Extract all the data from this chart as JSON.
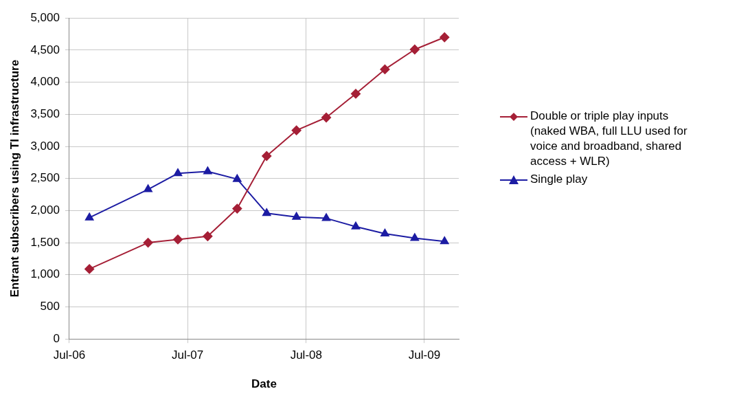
{
  "chart_data": {
    "type": "line",
    "xlabel": "Date",
    "ylabel": "Entrant subscribers using TI infrastructure",
    "x": [
      "2006-09",
      "2007-03",
      "2007-06",
      "2007-09",
      "2007-12",
      "2008-03",
      "2008-06",
      "2008-09",
      "2008-12",
      "2009-03",
      "2009-06",
      "2009-09"
    ],
    "series": [
      {
        "name": "Double or triple play inputs (naked WBA, full LLU used for voice and broadband, shared access + WLR)",
        "color": "#a51f36",
        "marker": "diamond",
        "values": [
          1090,
          1500,
          1550,
          1600,
          2030,
          2850,
          3250,
          3450,
          3820,
          4200,
          4510,
          4700
        ]
      },
      {
        "name": "Single play",
        "color": "#1c1ca3",
        "marker": "triangle",
        "values": [
          1890,
          2330,
          2580,
          2610,
          2490,
          1960,
          1900,
          1880,
          1750,
          1640,
          1570,
          1520
        ]
      }
    ],
    "xlim": [
      "2006-07",
      "2009-10-15"
    ],
    "xticks": [
      {
        "value": "2006-07",
        "label": "Jul-06"
      },
      {
        "value": "2007-07",
        "label": "Jul-07"
      },
      {
        "value": "2008-07",
        "label": "Jul-08"
      },
      {
        "value": "2009-07",
        "label": "Jul-09"
      }
    ],
    "ylim": [
      0,
      5000
    ],
    "yticks": [
      0,
      500,
      {
        "value": 1000,
        "label": "1,000"
      },
      {
        "value": 1500,
        "label": "1,500"
      },
      {
        "value": 2000,
        "label": "2,000"
      },
      {
        "value": 2500,
        "label": "2,500"
      },
      {
        "value": 3000,
        "label": "3,000"
      },
      {
        "value": 3500,
        "label": "3,500"
      },
      {
        "value": 4000,
        "label": "4,000"
      },
      {
        "value": 4500,
        "label": "4,500"
      },
      {
        "value": 5000,
        "label": "5,000"
      }
    ],
    "grid": true,
    "legend": "right"
  }
}
